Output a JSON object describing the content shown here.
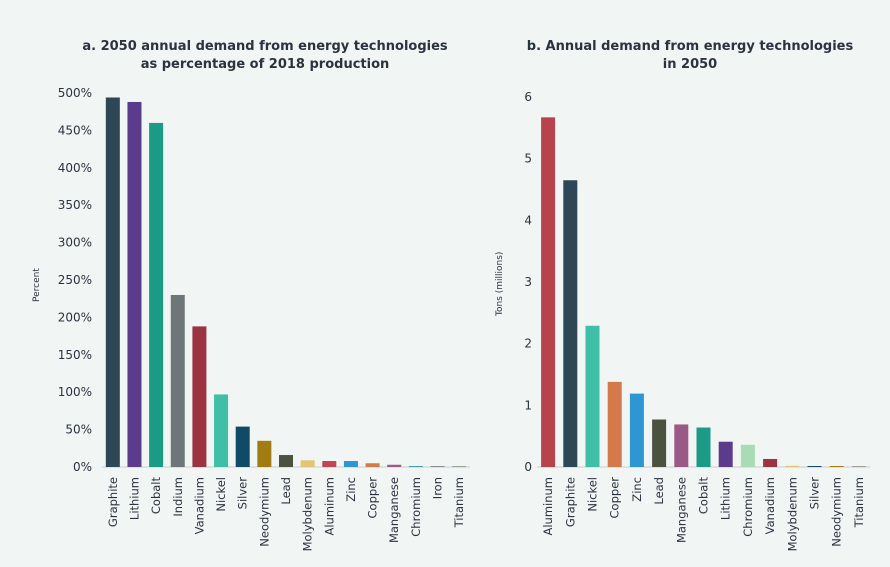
{
  "chart_data": [
    {
      "type": "bar",
      "title_line1": "a. 2050 annual demand from energy technologies",
      "title_line2": "as percentage of 2018 production",
      "xlabel": "",
      "ylabel": "Percent",
      "ylim": [
        0,
        500
      ],
      "yticks": [
        "0%",
        "50%",
        "100%",
        "150%",
        "200%",
        "250%",
        "300%",
        "350%",
        "400%",
        "450%",
        "500%"
      ],
      "categories": [
        "Graphite",
        "Lithium",
        "Cobalt",
        "Indium",
        "Vanadium",
        "Nickel",
        "Silver",
        "Neodymium",
        "Lead",
        "Molybdenum",
        "Aluminum",
        "Zinc",
        "Copper",
        "Manganese",
        "Chromium",
        "Iron",
        "Titanium"
      ],
      "values": [
        494,
        488,
        460,
        230,
        188,
        97,
        54,
        35,
        16,
        9,
        8,
        8,
        5,
        3,
        1,
        1,
        1
      ],
      "colors": [
        "#2e4756",
        "#5b3b8c",
        "#1b9a86",
        "#6e7777",
        "#9b3340",
        "#3fbfa5",
        "#0f4b66",
        "#a07c12",
        "#4a5240",
        "#e2c676",
        "#c4444f",
        "#2e96d2",
        "#d4794b",
        "#9b5a86",
        "#4a9abf",
        "#888f8f",
        "#a0a0a0"
      ]
    },
    {
      "type": "bar",
      "title_line1": "b. Annual demand from energy technologies",
      "title_line2": "in 2050",
      "xlabel": "",
      "ylabel": "Tons (millions)",
      "ylim": [
        0,
        6
      ],
      "yticks": [
        "0",
        "1",
        "2",
        "3",
        "4",
        "5",
        "6"
      ],
      "categories": [
        "Aluminum",
        "Graphite",
        "Nickel",
        "Copper",
        "Zinc",
        "Lead",
        "Manganese",
        "Cobalt",
        "Lithium",
        "Chromium",
        "Vanadium",
        "Molybdenum",
        "Silver",
        "Neodymium",
        "Titanium"
      ],
      "values": [
        5.67,
        4.65,
        2.29,
        1.38,
        1.19,
        0.77,
        0.69,
        0.64,
        0.41,
        0.36,
        0.13,
        0.02,
        0.01,
        0.01,
        0.01
      ],
      "colors": [
        "#b9434d",
        "#2e4756",
        "#3fbfa5",
        "#d4794b",
        "#2e96d2",
        "#4a5240",
        "#9b5a86",
        "#1b9a86",
        "#5b3b8c",
        "#a9dcb4",
        "#9b3340",
        "#e2c676",
        "#0f4b66",
        "#a07c12",
        "#a0a0a0"
      ]
    }
  ]
}
